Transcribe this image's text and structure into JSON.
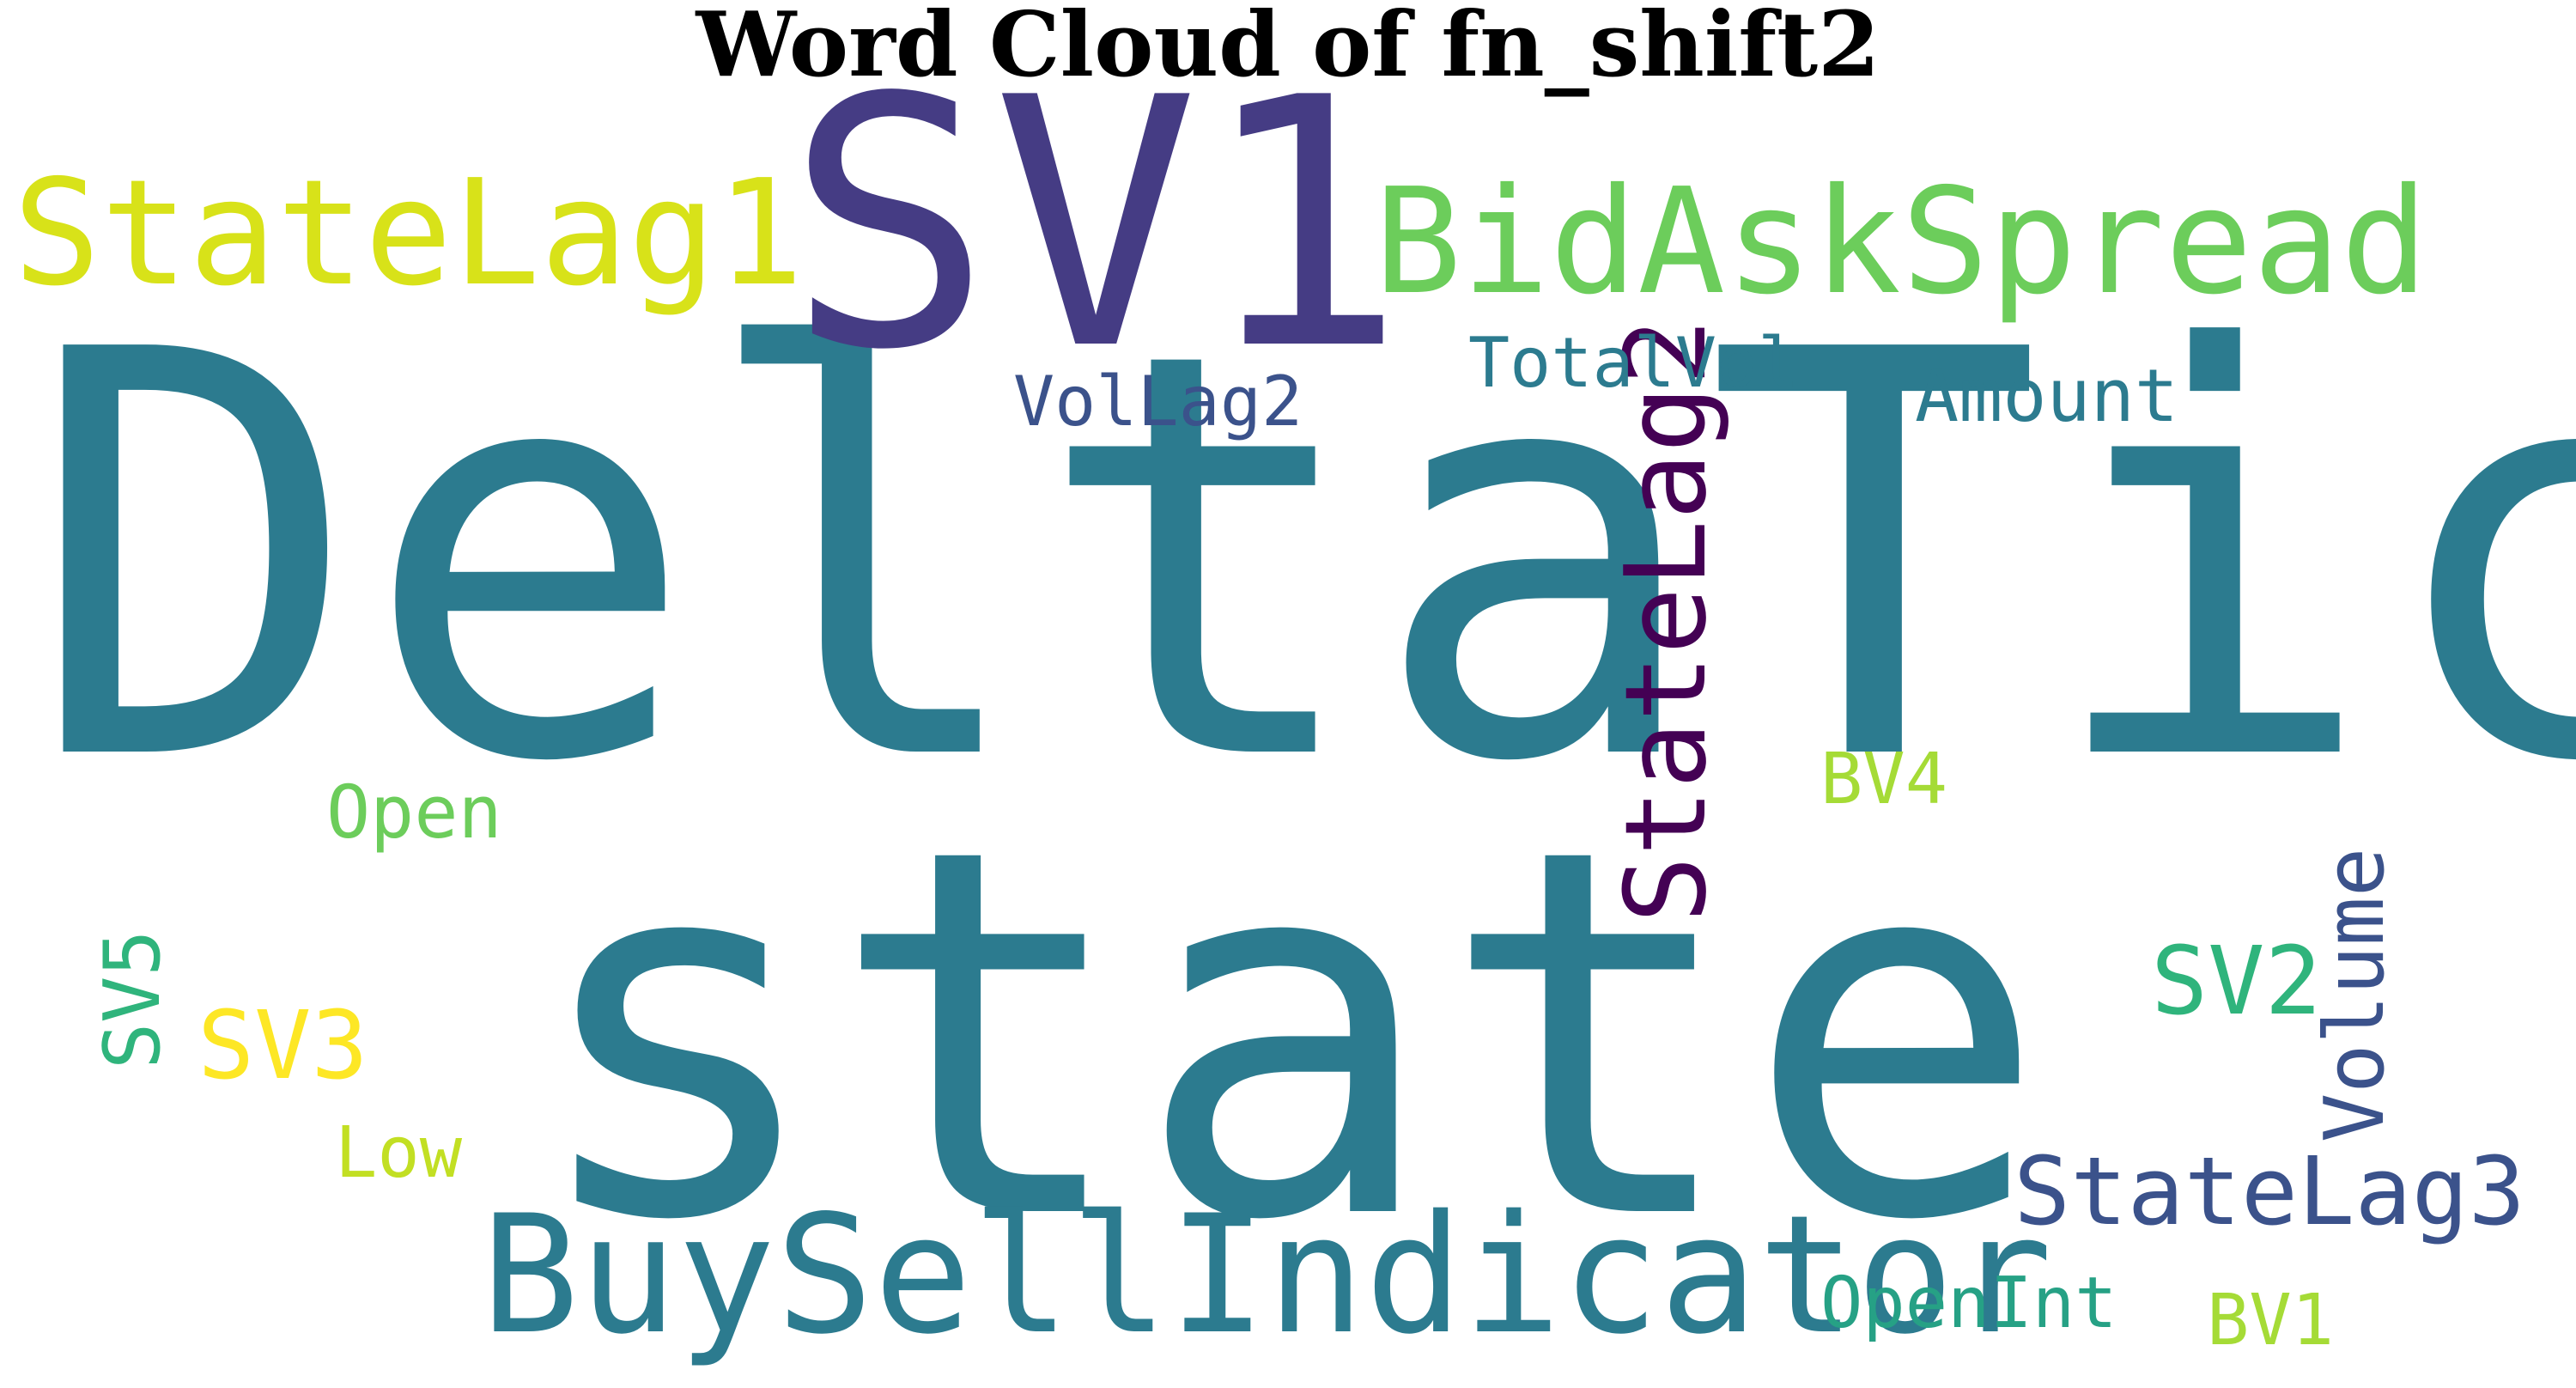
{
  "chart_data": {
    "type": "wordcloud",
    "title": "Word Cloud of fn_shift2",
    "words": [
      {
        "text": "DeltaTick",
        "weight": 1.0,
        "color": "#2c7b8f",
        "vertical": false
      },
      {
        "text": "state",
        "weight": 0.82,
        "color": "#2c7b8f",
        "vertical": false
      },
      {
        "text": "SV1",
        "weight": 0.55,
        "color": "#453c84",
        "vertical": false
      },
      {
        "text": "BuySellIndicator",
        "weight": 0.28,
        "color": "#2c7b8f",
        "vertical": false
      },
      {
        "text": "BidAskSpread",
        "weight": 0.25,
        "color": "#6ccd5b",
        "vertical": false
      },
      {
        "text": "StateLag1",
        "weight": 0.25,
        "color": "#d8e219",
        "vertical": false
      },
      {
        "text": "StateLag2",
        "weight": 0.2,
        "color": "#440154",
        "vertical": true
      },
      {
        "text": "StateLag3",
        "weight": 0.16,
        "color": "#3b528b",
        "vertical": false
      },
      {
        "text": "SV2",
        "weight": 0.16,
        "color": "#2fb47c",
        "vertical": false
      },
      {
        "text": "Volume",
        "weight": 0.14,
        "color": "#3b528b",
        "vertical": true
      },
      {
        "text": "SV3",
        "weight": 0.16,
        "color": "#fde725",
        "vertical": false
      },
      {
        "text": "SV5",
        "weight": 0.14,
        "color": "#2fb47c",
        "vertical": true
      },
      {
        "text": "Open",
        "weight": 0.13,
        "color": "#6ccd5b",
        "vertical": false
      },
      {
        "text": "Amount",
        "weight": 0.12,
        "color": "#2c7b8f",
        "vertical": false
      },
      {
        "text": "TotalVol",
        "weight": 0.12,
        "color": "#2c7b8f",
        "vertical": false
      },
      {
        "text": "VolLag2",
        "weight": 0.12,
        "color": "#3b528b",
        "vertical": false
      },
      {
        "text": "BV4",
        "weight": 0.12,
        "color": "#a5db36",
        "vertical": false
      },
      {
        "text": "Low",
        "weight": 0.12,
        "color": "#c2df23",
        "vertical": false
      },
      {
        "text": "OpenInt",
        "weight": 0.12,
        "color": "#26a185",
        "vertical": false
      },
      {
        "text": "BV1",
        "weight": 0.12,
        "color": "#a5db36",
        "vertical": false
      }
    ]
  }
}
